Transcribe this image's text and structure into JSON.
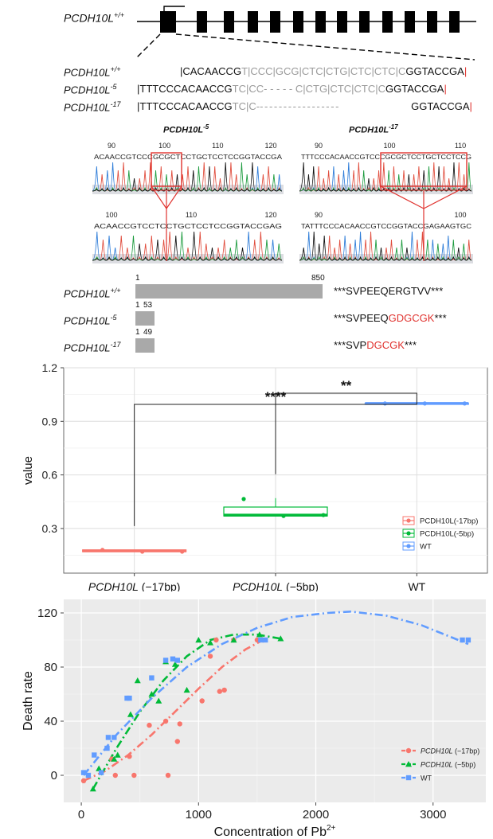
{
  "gene_panel": {
    "structure_label": "PCDH10L",
    "structure_sup": "+/+",
    "alignment": [
      {
        "name": "PCDH10L",
        "sup": "+/+",
        "segments": [
          {
            "t": "|CACAACCG",
            "c": "b"
          },
          {
            "t": "T|CCC|GCG|CTC|CTG|CTC|CTC|C",
            "c": "g"
          },
          {
            "t": "GGTACCGA",
            "c": "b"
          },
          {
            "t": "|",
            "c": "r"
          }
        ]
      },
      {
        "name": "PCDH10L",
        "sup": "-5",
        "segments": [
          {
            "t": "|TTTCCCACAACCG",
            "c": "b"
          },
          {
            "t": "TC|CC- - - - - C|CTG|CTC|CTC|C",
            "c": "g"
          },
          {
            "t": "GGTACCGA",
            "c": "b"
          },
          {
            "t": "|",
            "c": "r"
          }
        ]
      },
      {
        "name": "PCDH10L",
        "sup": "-17",
        "segments": [
          {
            "t": "|TTTCCCACAACCG",
            "c": "b"
          },
          {
            "t": "TC|C-",
            "c": "g"
          },
          {
            "t": "- - - - - - - - - - - - - - - - -",
            "c": "g"
          },
          {
            "t": "GGTACCGA",
            "c": "b"
          },
          {
            "t": "|",
            "c": "r"
          }
        ]
      }
    ],
    "traces": [
      {
        "title": "PCDH10L",
        "sup": "-5",
        "top_ticks": [
          "90",
          "100",
          "110",
          "120"
        ],
        "top_seq": "ACAACCGTCCCGCGCTCCTGCTCCTCCGGTACCGA",
        "bottom_ticks": [
          "100",
          "110",
          "120"
        ],
        "bottom_seq": "ACAACCGTCCTCCTGCTCCTCCGGTACCGAG"
      },
      {
        "title": "PCDH10L",
        "sup": "-17",
        "top_ticks": [
          "90",
          "100",
          "110"
        ],
        "top_seq": "TTTCCCACAACCGTCCCGCGCTCCTGCTCCTCCG",
        "bottom_ticks": [
          "90",
          "100"
        ],
        "bottom_seq": "TATTTCCCACAACCGTCCGGTACCGAGAAGTGC"
      }
    ],
    "proteins": [
      {
        "name": "PCDH10L",
        "sup": "+/+",
        "start": "1",
        "end": "850",
        "length": 850,
        "seq_normal": "***SVPEEQERGTVV***",
        "seq_mut": "",
        "seq_tail": ""
      },
      {
        "name": "PCDH10L",
        "sup": "-5",
        "start": "1",
        "end": "53",
        "length": 53,
        "seq_normal": "***SVPEEQ",
        "seq_mut": "GDGCGK",
        "seq_tail": "***"
      },
      {
        "name": "PCDH10L",
        "sup": "-17",
        "start": "1",
        "end": "49",
        "length": 49,
        "seq_normal": "***SVP",
        "seq_mut": "DGCGK",
        "seq_tail": "***"
      }
    ]
  },
  "colors": {
    "red": "#F8766D",
    "green": "#00BA38",
    "blue": "#619CFF",
    "mutation_red": "#e0322e",
    "protein_bar": "#a9a9a9",
    "panel_bg": "#ebebeb"
  },
  "chart_data": [
    {
      "type": "box",
      "ylabel": "value",
      "ylim": [
        0.05,
        1.2
      ],
      "yticks": [
        "0.3",
        "0.6",
        "0.9",
        "1.2"
      ],
      "categories": [
        {
          "italic": "PCDH10L",
          "rest": " (−17bp)"
        },
        {
          "italic": "PCDH10L",
          "rest": " (−5bp)"
        },
        {
          "italic": "",
          "rest": "WT"
        }
      ],
      "series": [
        {
          "name": "PCDH10L(-17bp)",
          "color": "#F8766D",
          "box": {
            "min": 0.17,
            "q1": 0.17,
            "median": 0.175,
            "q3": 0.18,
            "max": 0.18
          },
          "points": [
            0.18,
            0.17,
            0.17
          ]
        },
        {
          "name": "PCDH10L(-5bp)",
          "color": "#00BA38",
          "box": {
            "min": 0.37,
            "q1": 0.37,
            "median": 0.375,
            "q3": 0.42,
            "max": 0.47
          },
          "points": [
            0.465,
            0.37,
            0.375
          ]
        },
        {
          "name": "WT",
          "color": "#619CFF",
          "box": {
            "min": 1.0,
            "q1": 1.0,
            "median": 1.0,
            "q3": 1.0,
            "max": 1.0
          },
          "points": [
            1.0,
            1.0,
            1.0
          ]
        }
      ],
      "significance": [
        {
          "from": "PCDH10L (−5bp)",
          "to": "WT",
          "label": "**"
        },
        {
          "from": "PCDH10L (−17bp)",
          "to": "WT",
          "label": "****"
        }
      ],
      "legend_position": "bottom-right",
      "grid": true
    },
    {
      "type": "scatter",
      "xlabel": "Concentration of Pb",
      "xlabel_sup": "2+",
      "ylabel": "Death rate",
      "xlim": [
        -150,
        3450
      ],
      "ylim": [
        -20,
        130
      ],
      "xticks": [
        "0",
        "1000",
        "2000",
        "3000"
      ],
      "yticks": [
        "0",
        "40",
        "80",
        "120"
      ],
      "grid": true,
      "legend_position": "bottom-right",
      "series": [
        {
          "name_italic": "PCDH10L",
          "name_rest": " (−17bp)",
          "color": "#F8766D",
          "marker": "circle",
          "points": [
            [
              20,
              -4
            ],
            [
              260,
              12
            ],
            [
              290,
              0
            ],
            [
              410,
              14
            ],
            [
              450,
              0
            ],
            [
              580,
              37
            ],
            [
              720,
              40
            ],
            [
              740,
              0
            ],
            [
              820,
              25
            ],
            [
              840,
              38
            ],
            [
              1030,
              55
            ],
            [
              1100,
              88
            ],
            [
              1150,
              100
            ],
            [
              1180,
              62
            ],
            [
              1220,
              63
            ],
            [
              1300,
              100
            ],
            [
              1500,
              100
            ],
            [
              1550,
              100
            ]
          ],
          "fit": [
            [
              20,
              -4
            ],
            [
              200,
              3
            ],
            [
              400,
              15
            ],
            [
              600,
              30
            ],
            [
              800,
              47
            ],
            [
              1000,
              64
            ],
            [
              1200,
              80
            ],
            [
              1400,
              93
            ],
            [
              1550,
              100
            ]
          ]
        },
        {
          "name_italic": "PCDH10L",
          "name_rest": " (−5bp)",
          "color": "#00BA38",
          "marker": "triangle",
          "points": [
            [
              100,
              -10
            ],
            [
              150,
              5
            ],
            [
              280,
              12
            ],
            [
              310,
              15
            ],
            [
              420,
              45
            ],
            [
              480,
              70
            ],
            [
              600,
              60
            ],
            [
              660,
              55
            ],
            [
              720,
              84
            ],
            [
              800,
              82
            ],
            [
              900,
              63
            ],
            [
              1000,
              100
            ],
            [
              1100,
              98
            ],
            [
              1300,
              100
            ],
            [
              1520,
              104
            ],
            [
              1700,
              101
            ]
          ],
          "fit": [
            [
              100,
              -10
            ],
            [
              300,
              20
            ],
            [
              500,
              47
            ],
            [
              700,
              70
            ],
            [
              900,
              88
            ],
            [
              1100,
              100
            ],
            [
              1300,
              104
            ],
            [
              1500,
              104
            ],
            [
              1700,
              101
            ]
          ]
        },
        {
          "name_italic": "",
          "name_rest": "WT",
          "color": "#619CFF",
          "marker": "square",
          "points": [
            [
              20,
              2
            ],
            [
              60,
              0
            ],
            [
              110,
              15
            ],
            [
              170,
              2
            ],
            [
              220,
              20
            ],
            [
              230,
              28
            ],
            [
              280,
              28
            ],
            [
              390,
              57
            ],
            [
              410,
              57
            ],
            [
              600,
              72
            ],
            [
              720,
              85
            ],
            [
              780,
              86
            ],
            [
              820,
              85
            ],
            [
              1530,
              100
            ],
            [
              1570,
              100
            ],
            [
              3250,
              100
            ],
            [
              3300,
              100
            ]
          ],
          "fit": [
            [
              20,
              0
            ],
            [
              300,
              30
            ],
            [
              600,
              57
            ],
            [
              900,
              80
            ],
            [
              1200,
              97
            ],
            [
              1500,
              109
            ],
            [
              1800,
              117
            ],
            [
              2100,
              120
            ],
            [
              2300,
              121
            ],
            [
              2600,
              118
            ],
            [
              2900,
              111
            ],
            [
              3100,
              104
            ],
            [
              3300,
              97
            ]
          ]
        }
      ]
    }
  ]
}
